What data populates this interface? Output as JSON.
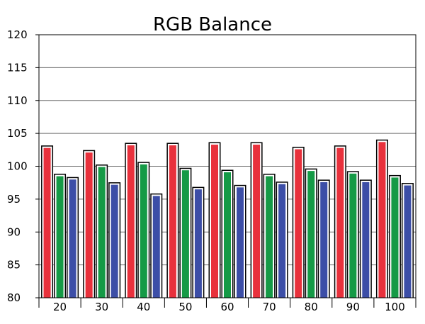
{
  "chart_data": {
    "type": "bar",
    "title": "RGB Balance",
    "xlabel": "",
    "ylabel": "",
    "categories": [
      "20",
      "30",
      "40",
      "50",
      "60",
      "70",
      "80",
      "90",
      "100"
    ],
    "series": [
      {
        "values": [
          103.0,
          102.3,
          103.4,
          103.4,
          103.5,
          103.5,
          102.8,
          103.0,
          103.9
        ],
        "color": "#e8313c"
      },
      {
        "values": [
          98.7,
          100.1,
          100.5,
          99.6,
          99.3,
          98.7,
          99.5,
          99.1,
          98.5
        ],
        "color": "#159a46"
      },
      {
        "values": [
          98.2,
          97.4,
          95.7,
          96.7,
          97.0,
          97.5,
          97.8,
          97.8,
          97.3
        ],
        "color": "#3c4ea7"
      }
    ],
    "ylim": [
      80,
      120
    ],
    "yticks": [
      "80",
      "85",
      "90",
      "95",
      "100",
      "105",
      "110",
      "115",
      "120"
    ],
    "grid": true,
    "legend": "none"
  }
}
